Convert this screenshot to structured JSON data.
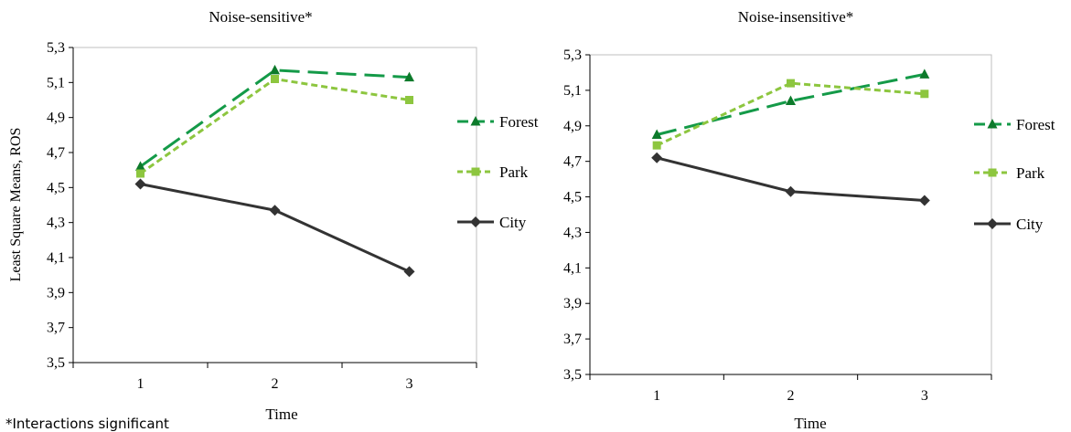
{
  "footnote": "*Interactions significant",
  "colors": {
    "forest": "#149a48",
    "park": "#8dc63f",
    "city": "#333333",
    "forest_marker": "#0d7a2b",
    "axis": "#000000"
  },
  "chart_data": [
    {
      "type": "line",
      "title": "Noise-sensitive*",
      "xlabel": "Time",
      "ylabel": "Least Square Means, ROS",
      "x": [
        "1",
        "2",
        "3"
      ],
      "yticks": [
        "3,5",
        "3,7",
        "3,9",
        "4,1",
        "4,3",
        "4,5",
        "4,7",
        "4,9",
        "5,1",
        "5,3"
      ],
      "ylim": [
        3.5,
        5.3
      ],
      "grid": false,
      "legend_position": "right",
      "series": [
        {
          "name": "Forest",
          "key": "forest",
          "marker": "triangle",
          "dash": "long",
          "values": [
            4.62,
            5.17,
            5.13
          ]
        },
        {
          "name": "Park",
          "key": "park",
          "marker": "square",
          "dash": "short",
          "values": [
            4.58,
            5.12,
            5.0
          ]
        },
        {
          "name": "City",
          "key": "city",
          "marker": "diamond",
          "dash": "solid",
          "values": [
            4.52,
            4.37,
            4.02
          ]
        }
      ]
    },
    {
      "type": "line",
      "title": "Noise-insensitive*",
      "xlabel": "Time",
      "ylabel": "",
      "x": [
        "1",
        "2",
        "3"
      ],
      "yticks": [
        "3,5",
        "3,7",
        "3,9",
        "4,1",
        "4,3",
        "4,5",
        "4,7",
        "4,9",
        "5,1",
        "5,3"
      ],
      "ylim": [
        3.5,
        5.3
      ],
      "grid": false,
      "legend_position": "right",
      "series": [
        {
          "name": "Forest",
          "key": "forest",
          "marker": "triangle",
          "dash": "long",
          "values": [
            4.85,
            5.04,
            5.19
          ]
        },
        {
          "name": "Park",
          "key": "park",
          "marker": "square",
          "dash": "short",
          "values": [
            4.79,
            5.14,
            5.08
          ]
        },
        {
          "name": "City",
          "key": "city",
          "marker": "diamond",
          "dash": "solid",
          "values": [
            4.72,
            4.53,
            4.48
          ]
        }
      ]
    }
  ]
}
